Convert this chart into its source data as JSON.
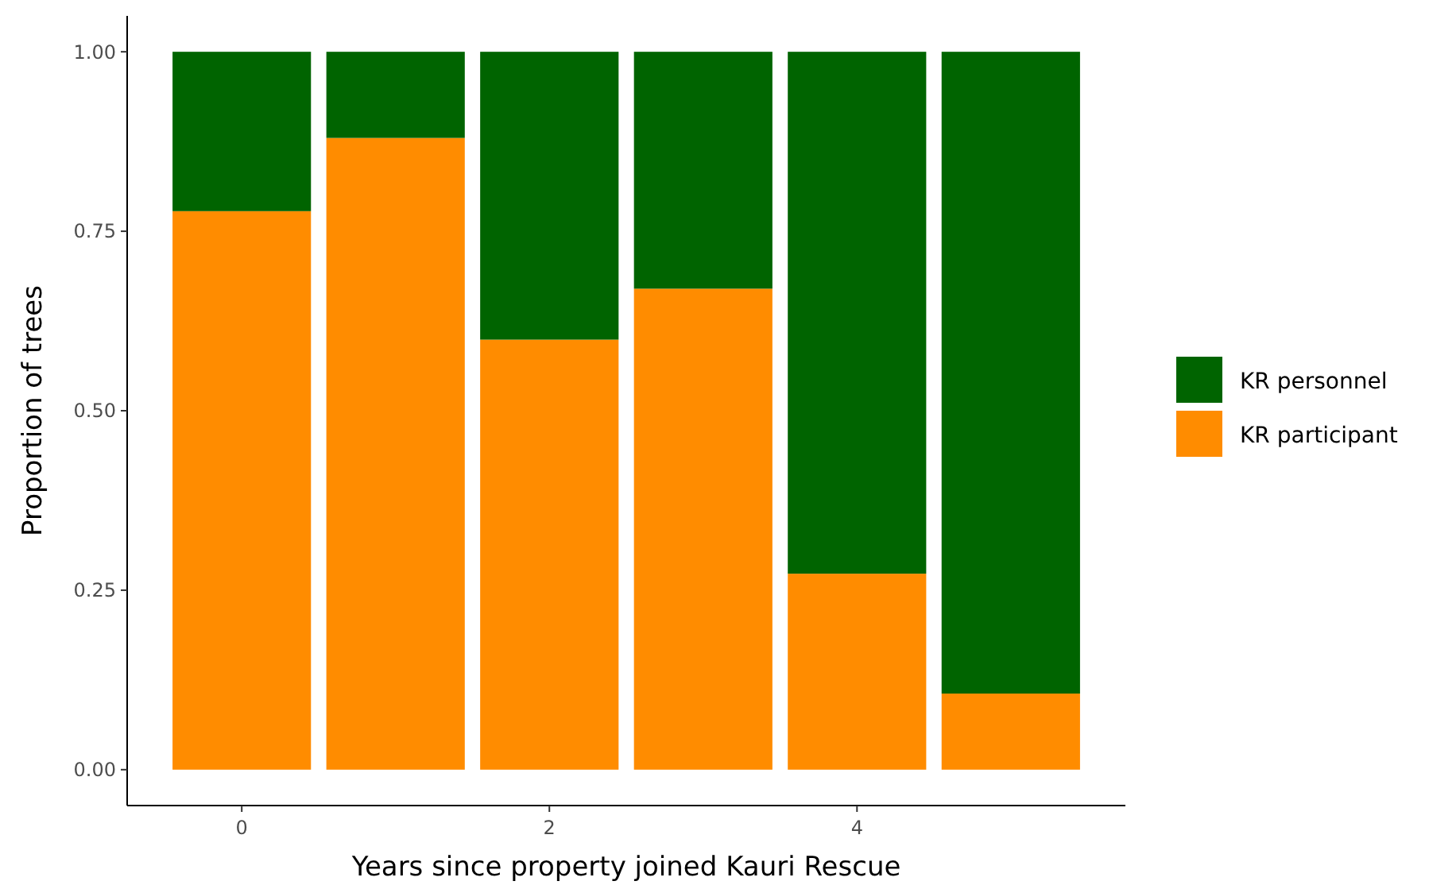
{
  "chart_data": {
    "type": "bar",
    "xlabel": "Years since property joined Kauri Rescue",
    "ylabel": "Proportion of trees",
    "x": [
      0,
      1,
      2,
      3,
      4,
      5
    ],
    "stacked": true,
    "legend": "right",
    "series": [
      {
        "name": "KR participant",
        "color": "#ff8c00",
        "values": [
          0.778,
          0.88,
          0.599,
          0.67,
          0.273,
          0.106
        ]
      },
      {
        "name": "KR personnel",
        "color": "#006400",
        "values": [
          0.222,
          0.12,
          0.401,
          0.33,
          0.727,
          0.894
        ]
      }
    ],
    "xlim": [
      -0.745,
      5.745
    ],
    "xticks": [
      0,
      2,
      4
    ],
    "ylim": [
      -0.05,
      1.05
    ],
    "yticks": [
      {
        "value": 0,
        "label": "0.00"
      },
      {
        "value": 0.25,
        "label": "0.25"
      },
      {
        "value": 0.5,
        "label": "0.50"
      },
      {
        "value": 0.75,
        "label": "0.75"
      },
      {
        "value": 1,
        "label": "1.00"
      }
    ],
    "grid": false
  }
}
